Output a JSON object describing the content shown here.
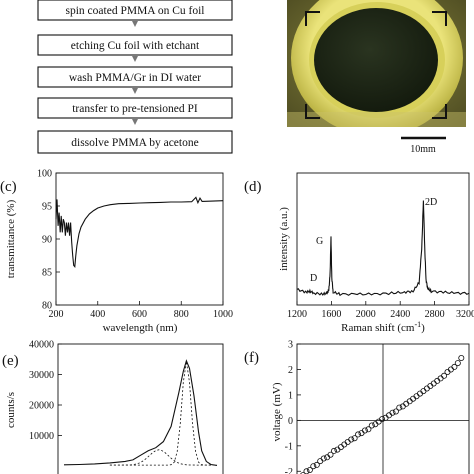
{
  "flowchart": {
    "steps": [
      "spin coated PMMA on Cu foil",
      "etching Cu foil with etchant",
      "wash PMMA/Gr in DI water",
      "transfer to pre-tensioned PI",
      "dissolve PMMA by acetone"
    ]
  },
  "photo": {
    "scale_label": "10mm",
    "colors": {
      "ring": "#d8d25a",
      "film": "#1d2615",
      "background": "#6d6a34"
    }
  },
  "chart_data": [
    {
      "panel": "(c)",
      "type": "line",
      "title": "",
      "xlabel": "wavelength (nm)",
      "ylabel": "transmittance (%)",
      "xlim": [
        200,
        1000
      ],
      "ylim": [
        80,
        100
      ],
      "xticks": [
        "200",
        "400",
        "600",
        "800",
        "1000"
      ],
      "yticks": [
        "80",
        "85",
        "90",
        "95",
        "100"
      ],
      "series": [
        {
          "x": [
            200,
            205,
            210,
            215,
            220,
            225,
            230,
            235,
            240,
            245,
            250,
            255,
            260,
            265,
            270,
            275,
            280,
            285,
            290,
            295,
            300,
            310,
            320,
            340,
            360,
            380,
            400,
            430,
            460,
            500,
            550,
            600,
            650,
            700,
            750,
            800,
            850,
            870,
            880,
            890,
            900,
            950,
            1000
          ],
          "y": [
            93,
            96,
            92,
            94,
            91,
            93.5,
            91,
            93,
            92.5,
            90.5,
            92.5,
            91,
            92.5,
            90.5,
            92.5,
            89.5,
            87.5,
            86,
            85.8,
            87.5,
            89,
            90.8,
            91.8,
            93,
            93.8,
            94.3,
            94.7,
            95,
            95.2,
            95.35,
            95.4,
            95.45,
            95.5,
            95.55,
            95.6,
            95.6,
            95.65,
            96.3,
            95.5,
            96.2,
            95.7,
            95.75,
            95.8
          ]
        }
      ]
    },
    {
      "panel": "(d)",
      "type": "line",
      "title": "",
      "xlabel": "Raman shift (cm",
      "xlabel_sup": "-1",
      "xlabel_tail": ")",
      "ylabel": "intensity (a.u.)",
      "xlim": [
        1200,
        3200
      ],
      "xticks": [
        "1200",
        "1600",
        "2000",
        "2400",
        "2800",
        "3200"
      ],
      "peak_labels": [
        "D",
        "G",
        "2D"
      ],
      "series": [
        {
          "x": [
            1200,
            1300,
            1350,
            1400,
            1500,
            1550,
            1570,
            1585,
            1595,
            1605,
            1620,
            1700,
            1900,
            2100,
            2300,
            2450,
            2550,
            2620,
            2650,
            2670,
            2685,
            2700,
            2720,
            2760,
            2900,
            3050,
            3200
          ],
          "y": [
            0.08,
            0.05,
            0.06,
            0.04,
            0.03,
            0.04,
            0.07,
            0.25,
            0.62,
            0.2,
            0.05,
            0.03,
            0.03,
            0.03,
            0.04,
            0.05,
            0.06,
            0.15,
            0.5,
            1.0,
            0.52,
            0.18,
            0.09,
            0.06,
            0.05,
            0.04,
            0.04
          ]
        }
      ]
    },
    {
      "panel": "(e)",
      "type": "line",
      "title": "",
      "ylabel": "counts/s",
      "ylim": [
        0,
        40000
      ],
      "yticks": [
        "10000",
        "20000",
        "30000",
        "40000"
      ],
      "series": [
        {
          "x": [
            0,
            10,
            20,
            30,
            40,
            45,
            50,
            55,
            60,
            65,
            70,
            75,
            78,
            80,
            82,
            85,
            88,
            90,
            93,
            96,
            100
          ],
          "y": [
            400,
            500,
            700,
            1000,
            1500,
            2000,
            3500,
            5000,
            6000,
            8000,
            13000,
            24000,
            31000,
            34500,
            32000,
            23000,
            11000,
            5000,
            1500,
            500,
            200
          ]
        }
      ]
    },
    {
      "panel": "(f)",
      "type": "scatter",
      "title": "",
      "ylabel": "voltage (mV)",
      "xlim": [
        -10,
        10
      ],
      "ylim": [
        -2.5,
        3
      ],
      "yticks": [
        "-2",
        "-1",
        "0",
        "1",
        "2",
        "3"
      ],
      "series": [
        {
          "x": [
            -9.3,
            -8.9,
            -8.5,
            -8.1,
            -7.7,
            -7.3,
            -6.9,
            -6.5,
            -6.1,
            -5.7,
            -5.3,
            -4.9,
            -4.5,
            -4.1,
            -3.7,
            -3.3,
            -2.9,
            -2.5,
            -2.1,
            -1.7,
            -1.3,
            -0.9,
            -0.5,
            -0.1,
            0.3,
            0.7,
            1.1,
            1.5,
            1.9,
            2.3,
            2.7,
            3.1,
            3.5,
            3.9,
            4.3,
            4.7,
            5.1,
            5.5,
            5.9,
            6.3,
            6.7,
            7.1,
            7.5,
            7.9,
            8.3,
            8.7,
            9.1
          ],
          "y": [
            -2.15,
            -2.0,
            -1.95,
            -1.8,
            -1.75,
            -1.6,
            -1.5,
            -1.45,
            -1.35,
            -1.2,
            -1.15,
            -1.05,
            -0.95,
            -0.85,
            -0.75,
            -0.7,
            -0.55,
            -0.5,
            -0.4,
            -0.35,
            -0.2,
            -0.15,
            -0.05,
            0.05,
            0.1,
            0.2,
            0.3,
            0.35,
            0.5,
            0.55,
            0.65,
            0.75,
            0.85,
            0.95,
            1.05,
            1.15,
            1.25,
            1.35,
            1.45,
            1.55,
            1.65,
            1.75,
            1.9,
            2.0,
            2.1,
            2.25,
            2.45
          ]
        }
      ]
    }
  ]
}
